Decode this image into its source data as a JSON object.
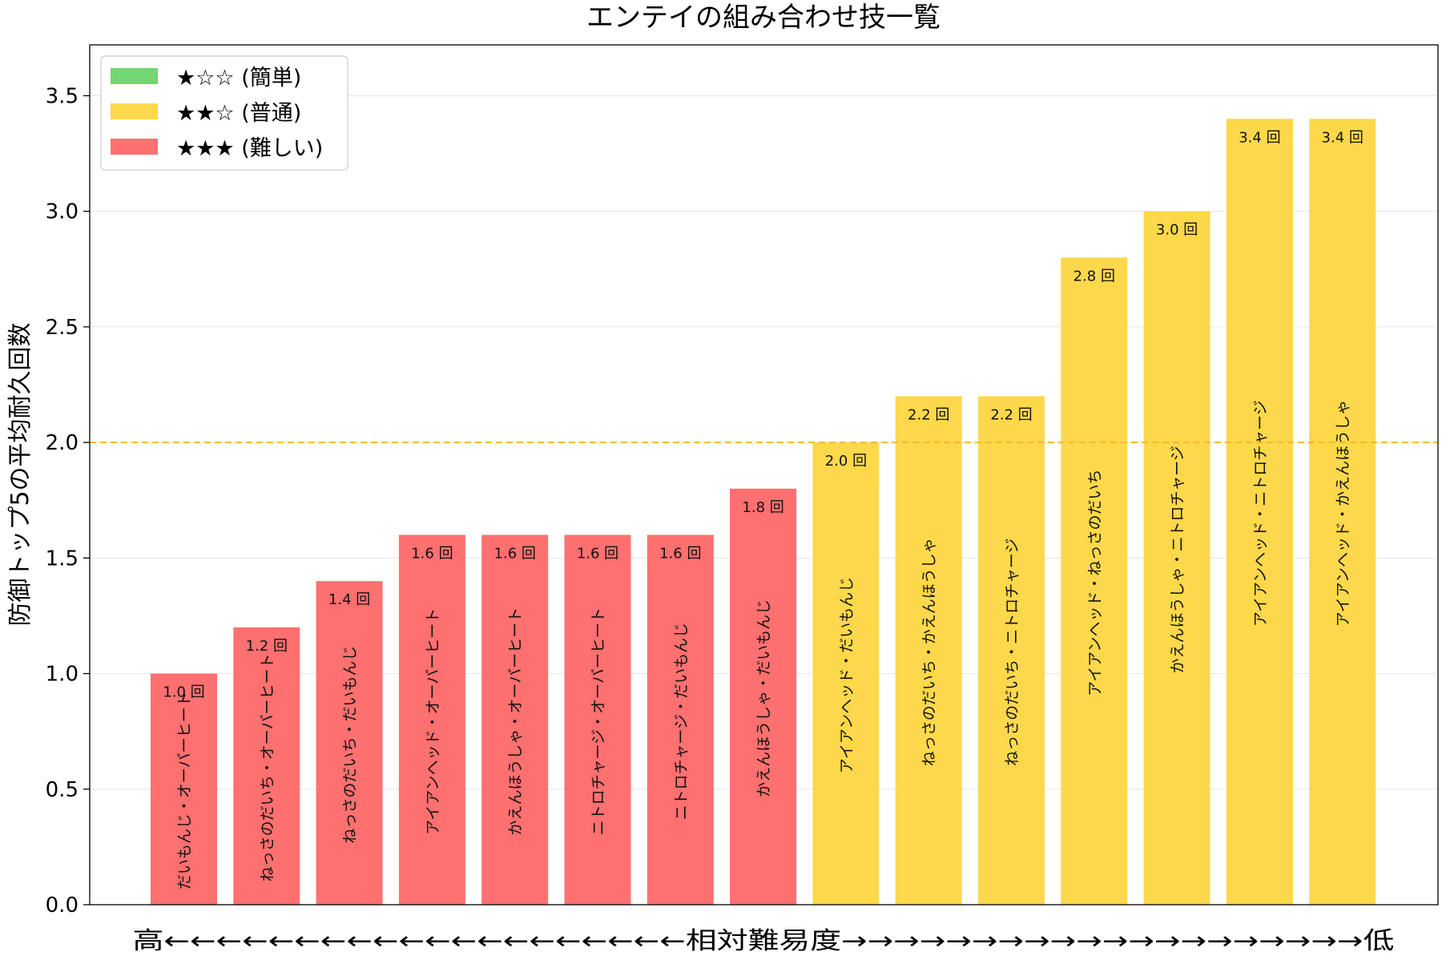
{
  "chart_data": {
    "type": "bar",
    "title": "エンテイの組み合わせ技一覧",
    "ylabel": "防御トップ5の平均耐久回数",
    "xlabel": "高←←←←←←←←←←←←←←←←←←←←相対難易度→→→→→→→→→→→→→→→→→→→→低",
    "ylim": [
      0,
      3.72
    ],
    "yticks": [
      "0.0",
      "0.5",
      "1.0",
      "1.5",
      "2.0",
      "2.5",
      "3.0",
      "3.5"
    ],
    "reference_line": {
      "y": 2.0,
      "color": "#f5b82e",
      "style": "dashed"
    },
    "grid": "horizontal",
    "legend": {
      "placement": "top-left",
      "entries": [
        {
          "label": "★☆☆ (簡単)",
          "color": "#72d672"
        },
        {
          "label": "★★☆ (普通)",
          "color": "#fdd84a"
        },
        {
          "label": "★★★ (難しい)",
          "color": "#ff7070"
        }
      ]
    },
    "bars": [
      {
        "name": "だいもんじ・オーバーヒート",
        "value": 1.0,
        "value_label": "1.0 回",
        "difficulty": "★★★"
      },
      {
        "name": "ねっさのだいち・オーバーヒート",
        "value": 1.2,
        "value_label": "1.2 回",
        "difficulty": "★★★"
      },
      {
        "name": "ねっさのだいち・だいもんじ",
        "value": 1.4,
        "value_label": "1.4 回",
        "difficulty": "★★★"
      },
      {
        "name": "アイアンヘッド・オーバーヒート",
        "value": 1.6,
        "value_label": "1.6 回",
        "difficulty": "★★★"
      },
      {
        "name": "かえんほうしゃ・オーバーヒート",
        "value": 1.6,
        "value_label": "1.6 回",
        "difficulty": "★★★"
      },
      {
        "name": "ニトロチャージ・オーバーヒート",
        "value": 1.6,
        "value_label": "1.6 回",
        "difficulty": "★★★"
      },
      {
        "name": "ニトロチャージ・だいもんじ",
        "value": 1.6,
        "value_label": "1.6 回",
        "difficulty": "★★★"
      },
      {
        "name": "かえんほうしゃ・だいもんじ",
        "value": 1.8,
        "value_label": "1.8 回",
        "difficulty": "★★★"
      },
      {
        "name": "アイアンヘッド・だいもんじ",
        "value": 2.0,
        "value_label": "2.0 回",
        "difficulty": "★★☆"
      },
      {
        "name": "ねっさのだいち・かえんほうしゃ",
        "value": 2.2,
        "value_label": "2.2 回",
        "difficulty": "★★☆"
      },
      {
        "name": "ねっさのだいち・ニトロチャージ",
        "value": 2.2,
        "value_label": "2.2 回",
        "difficulty": "★★☆"
      },
      {
        "name": "アイアンヘッド・ねっさのだいち",
        "value": 2.8,
        "value_label": "2.8 回",
        "difficulty": "★★☆"
      },
      {
        "name": "かえんほうしゃ・ニトロチャージ",
        "value": 3.0,
        "value_label": "3.0 回",
        "difficulty": "★★☆"
      },
      {
        "name": "アイアンヘッド・ニトロチャージ",
        "value": 3.4,
        "value_label": "3.4 回",
        "difficulty": "★★☆"
      },
      {
        "name": "アイアンヘッド・かえんほうしゃ",
        "value": 3.4,
        "value_label": "3.4 回",
        "difficulty": "★★☆"
      }
    ]
  }
}
